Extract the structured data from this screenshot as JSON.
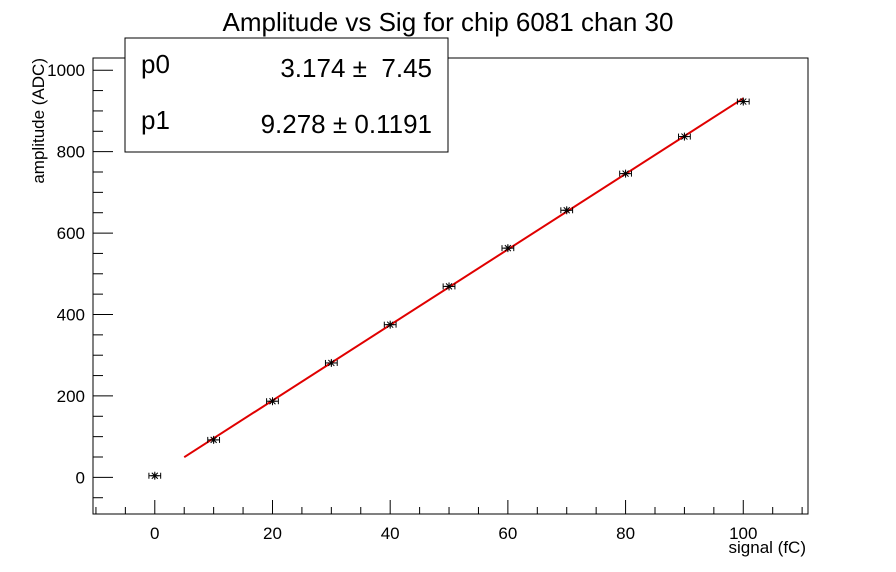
{
  "chart_data": {
    "type": "scatter",
    "title": "Amplitude vs Sig for chip 6081 chan 30",
    "xlabel": "signal (fC)",
    "ylabel": "amplitude (ADC)",
    "xlim": [
      -10.5,
      111
    ],
    "ylim": [
      -90,
      1030
    ],
    "xticks": [
      0,
      20,
      40,
      60,
      80,
      100
    ],
    "yticks": [
      0,
      200,
      400,
      600,
      800,
      1000
    ],
    "grid": false,
    "series": [
      {
        "points": [
          {
            "x": 0,
            "y": 4
          },
          {
            "x": 10,
            "y": 92
          },
          {
            "x": 20,
            "y": 187
          },
          {
            "x": 30,
            "y": 281
          },
          {
            "x": 40,
            "y": 375
          },
          {
            "x": 50,
            "y": 469
          },
          {
            "x": 60,
            "y": 563
          },
          {
            "x": 70,
            "y": 656
          },
          {
            "x": 80,
            "y": 746
          },
          {
            "x": 90,
            "y": 837
          },
          {
            "x": 100,
            "y": 923
          }
        ],
        "x_error": 1.0,
        "y_error": 7,
        "color": "#000000"
      }
    ],
    "fit": {
      "color": "#e00000",
      "x_range": [
        5,
        100
      ],
      "params": [
        {
          "name": "p0",
          "value": 3.174,
          "error": 7.45,
          "text_value": "3.174",
          "text_error": "7.45"
        },
        {
          "name": "p1",
          "value": 9.278,
          "error": 0.1191,
          "text_value": "9.278",
          "text_error": "0.1191"
        }
      ],
      "pm_symbol": "±"
    },
    "legend_placement": "top-left"
  }
}
